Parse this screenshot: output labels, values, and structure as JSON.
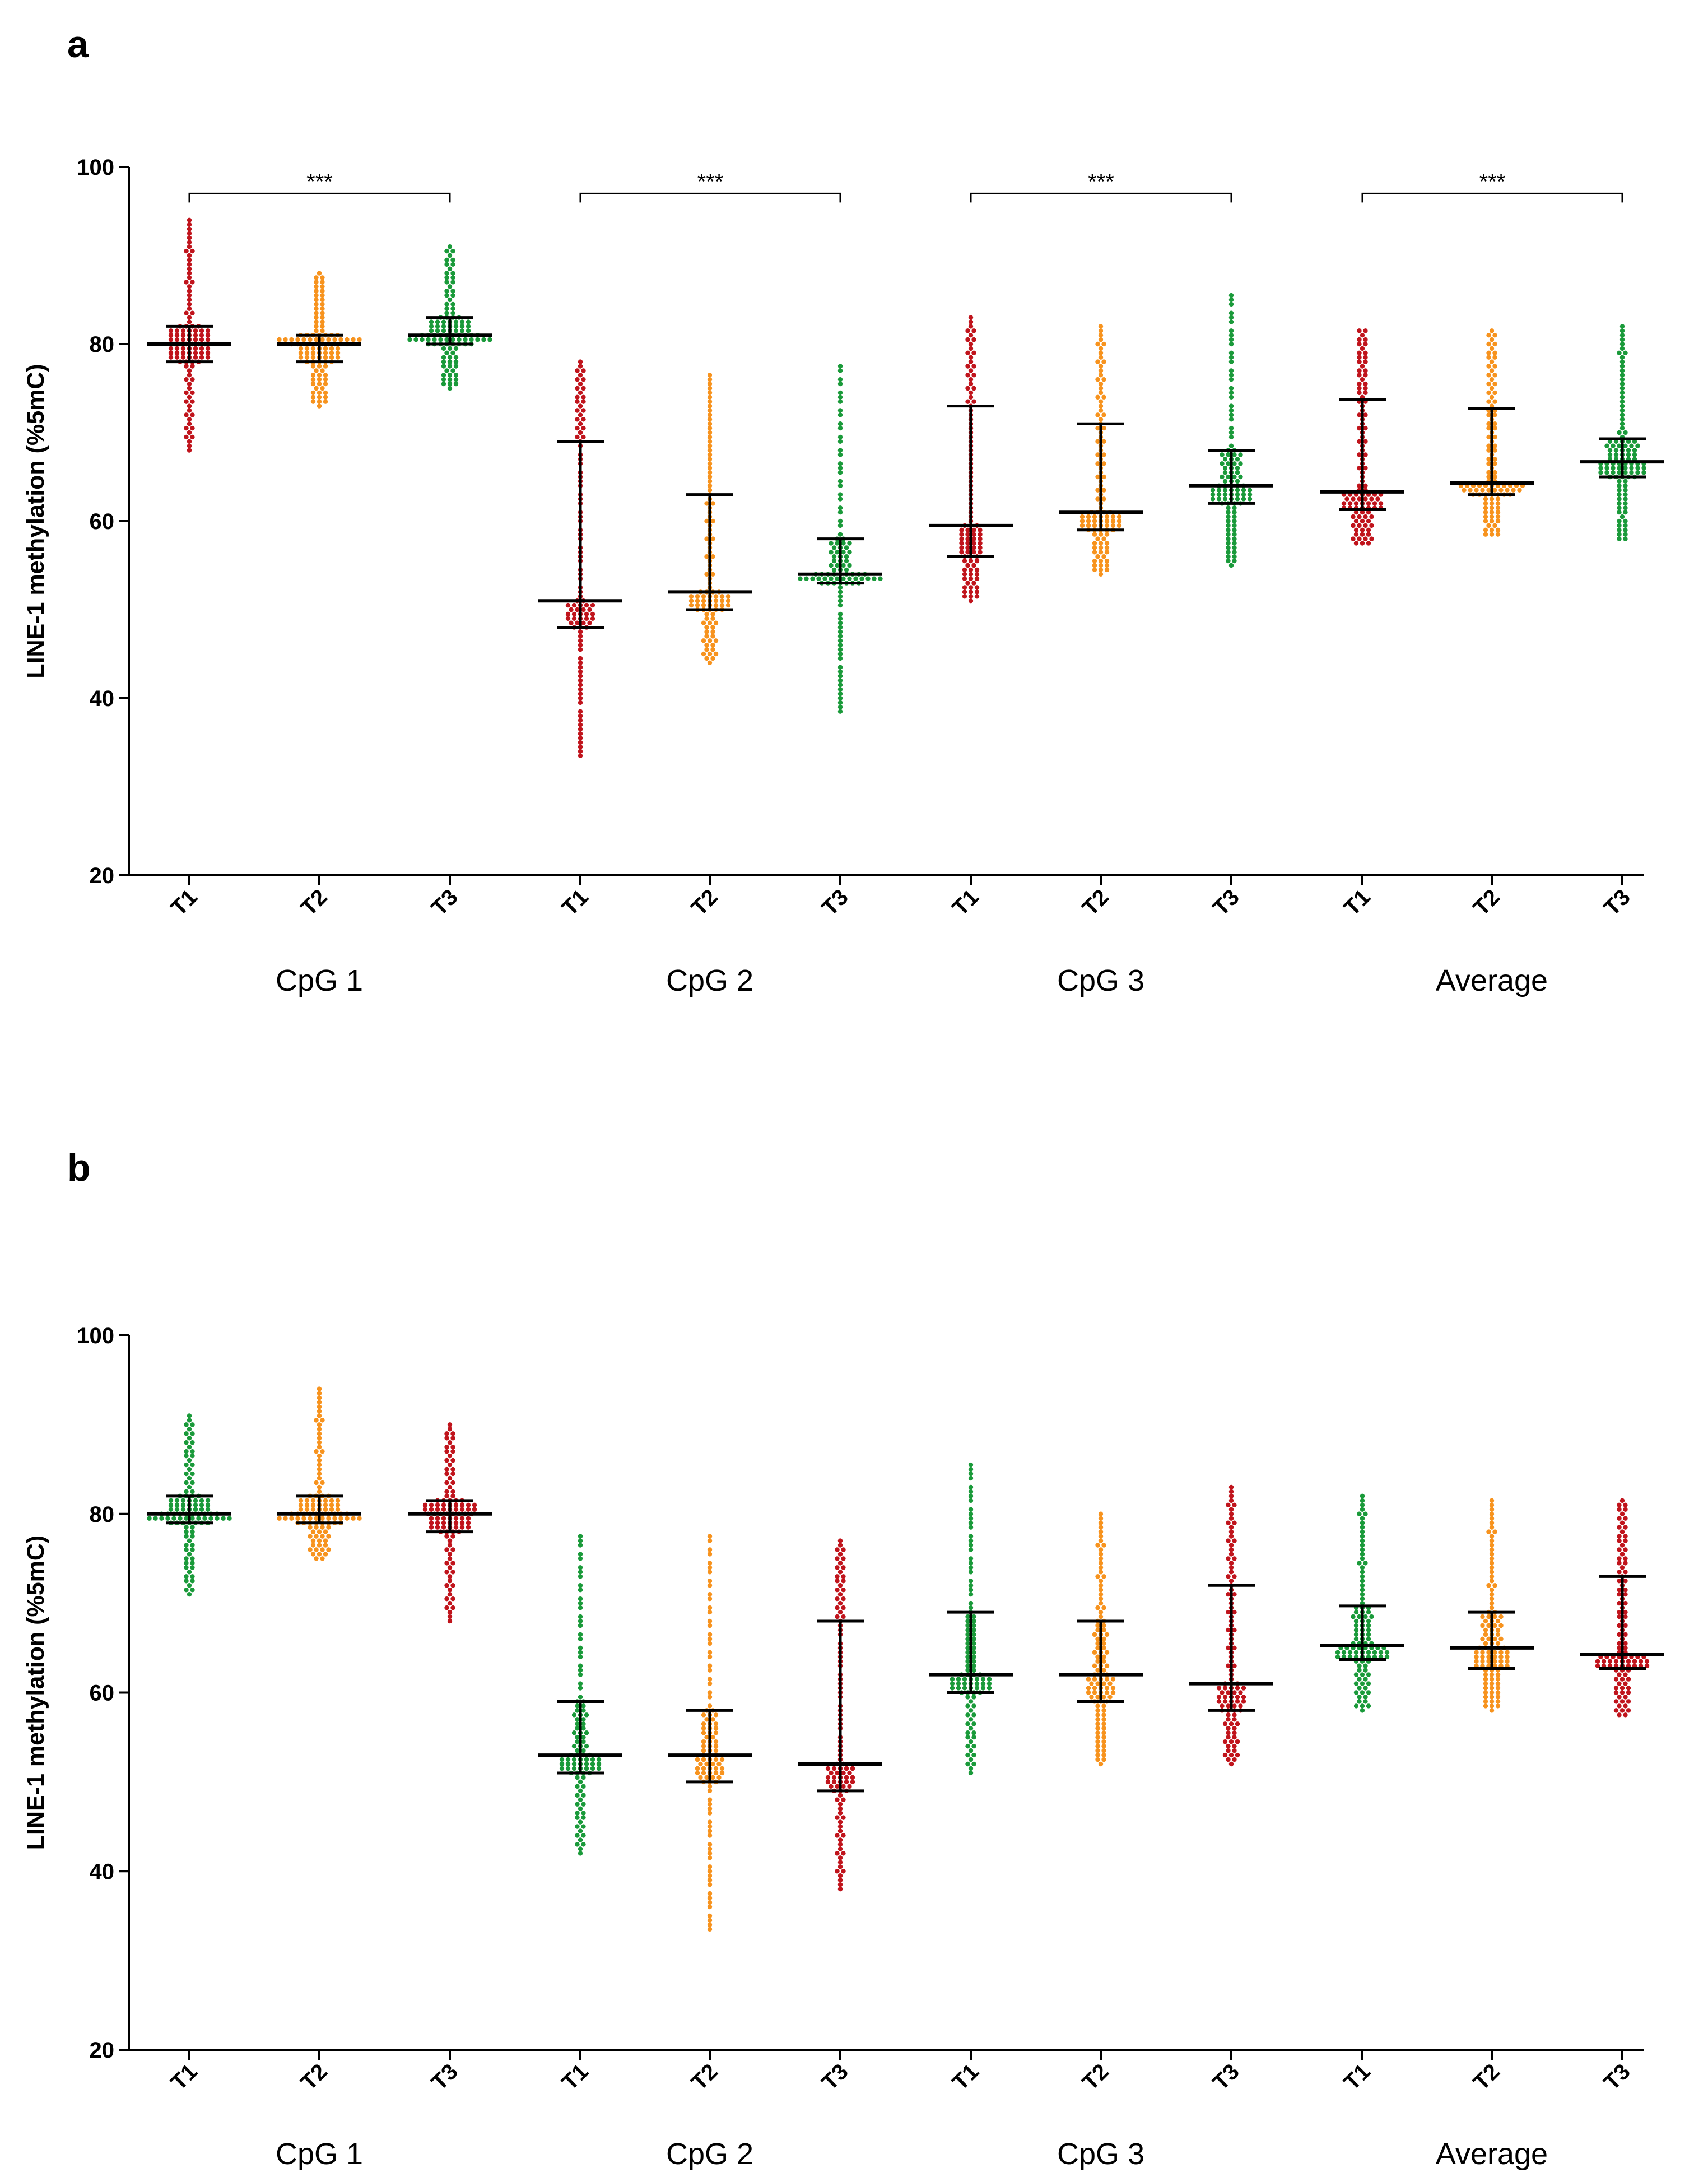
{
  "panels": [
    {
      "letter": "a",
      "chart_data": {
        "type": "scatter",
        "subtype": "dot-plot with median and interquartile range",
        "ylabel": "LINE-1 methylation (%5mC)",
        "ylim": [
          20,
          100
        ],
        "yticks": [
          "20",
          "40",
          "60",
          "80",
          "100"
        ],
        "groups": [
          "CpG 1",
          "CpG 2",
          "CpG 3",
          "Average"
        ],
        "categories": [
          "T1",
          "T2",
          "T3"
        ],
        "colors": {
          "red": "#c0141c",
          "orange": "#f7931e",
          "green": "#1a9a3a"
        },
        "significance": [
          "***",
          "***",
          "***",
          "***"
        ],
        "series": [
          {
            "group": "CpG 1",
            "category": "T1",
            "color": "red",
            "median": 80,
            "q1": 78,
            "q3": 82,
            "min": 68,
            "max": 94
          },
          {
            "group": "CpG 1",
            "category": "T2",
            "color": "orange",
            "median": 80,
            "q1": 78,
            "q3": 81,
            "min": 73,
            "max": 88
          },
          {
            "group": "CpG 1",
            "category": "T3",
            "color": "green",
            "median": 81,
            "q1": 80,
            "q3": 83,
            "min": 75,
            "max": 91
          },
          {
            "group": "CpG 2",
            "category": "T1",
            "color": "red",
            "median": 51,
            "q1": 48,
            "q3": 69,
            "min": 33,
            "max": 78
          },
          {
            "group": "CpG 2",
            "category": "T2",
            "color": "orange",
            "median": 52,
            "q1": 50,
            "q3": 63,
            "min": 44,
            "max": 77
          },
          {
            "group": "CpG 2",
            "category": "T3",
            "color": "green",
            "median": 54,
            "q1": 53,
            "q3": 58,
            "min": 38,
            "max": 78
          },
          {
            "group": "CpG 3",
            "category": "T1",
            "color": "red",
            "median": 59.5,
            "q1": 56,
            "q3": 73,
            "min": 51,
            "max": 83
          },
          {
            "group": "CpG 3",
            "category": "T2",
            "color": "orange",
            "median": 61,
            "q1": 59,
            "q3": 71,
            "min": 54,
            "max": 82
          },
          {
            "group": "CpG 3",
            "category": "T3",
            "color": "green",
            "median": 64,
            "q1": 62,
            "q3": 68,
            "min": 55,
            "max": 86
          },
          {
            "group": "Average",
            "category": "T1",
            "color": "red",
            "median": 63.3,
            "q1": 61.3,
            "q3": 73.7,
            "min": 57.3,
            "max": 81.7
          },
          {
            "group": "Average",
            "category": "T2",
            "color": "orange",
            "median": 64.3,
            "q1": 63,
            "q3": 72.7,
            "min": 58.3,
            "max": 81.7
          },
          {
            "group": "Average",
            "category": "T3",
            "color": "green",
            "median": 66.7,
            "q1": 65,
            "q3": 69.3,
            "min": 57.7,
            "max": 82.3
          }
        ]
      }
    },
    {
      "letter": "b",
      "chart_data": {
        "type": "scatter",
        "subtype": "dot-plot with median and interquartile range",
        "ylabel": "LINE-1 methylation (%5mC)",
        "ylim": [
          20,
          100
        ],
        "yticks": [
          "20",
          "40",
          "60",
          "80",
          "100"
        ],
        "groups": [
          "CpG 1",
          "CpG 2",
          "CpG 3",
          "Average"
        ],
        "categories": [
          "T1",
          "T2",
          "T3"
        ],
        "colors": {
          "red": "#c0141c",
          "orange": "#f7931e",
          "green": "#1a9a3a"
        },
        "significance": [],
        "series": [
          {
            "group": "CpG 1",
            "category": "T1",
            "color": "green",
            "median": 80,
            "q1": 79,
            "q3": 82,
            "min": 71,
            "max": 91
          },
          {
            "group": "CpG 1",
            "category": "T2",
            "color": "orange",
            "median": 80,
            "q1": 79,
            "q3": 82,
            "min": 75,
            "max": 94
          },
          {
            "group": "CpG 1",
            "category": "T3",
            "color": "red",
            "median": 80,
            "q1": 78,
            "q3": 81.5,
            "min": 68,
            "max": 90
          },
          {
            "group": "CpG 2",
            "category": "T1",
            "color": "green",
            "median": 53,
            "q1": 51,
            "q3": 59,
            "min": 42,
            "max": 78
          },
          {
            "group": "CpG 2",
            "category": "T2",
            "color": "orange",
            "median": 53,
            "q1": 50,
            "q3": 58,
            "min": 33,
            "max": 78
          },
          {
            "group": "CpG 2",
            "category": "T3",
            "color": "red",
            "median": 52,
            "q1": 49,
            "q3": 68,
            "min": 38,
            "max": 77
          },
          {
            "group": "CpG 3",
            "category": "T1",
            "color": "green",
            "median": 62,
            "q1": 60,
            "q3": 69,
            "min": 51,
            "max": 86
          },
          {
            "group": "CpG 3",
            "category": "T2",
            "color": "orange",
            "median": 62,
            "q1": 59,
            "q3": 68,
            "min": 52,
            "max": 80
          },
          {
            "group": "CpG 3",
            "category": "T3",
            "color": "red",
            "median": 61,
            "q1": 58,
            "q3": 72,
            "min": 52,
            "max": 83
          },
          {
            "group": "Average",
            "category": "T1",
            "color": "green",
            "median": 65.3,
            "q1": 63.7,
            "q3": 69.7,
            "min": 58,
            "max": 82.3
          },
          {
            "group": "Average",
            "category": "T2",
            "color": "orange",
            "median": 65,
            "q1": 62.7,
            "q3": 69,
            "min": 58,
            "max": 81.7
          },
          {
            "group": "Average",
            "category": "T3",
            "color": "red",
            "median": 64.3,
            "q1": 62.7,
            "q3": 73,
            "min": 57.3,
            "max": 81.7
          }
        ]
      }
    }
  ]
}
